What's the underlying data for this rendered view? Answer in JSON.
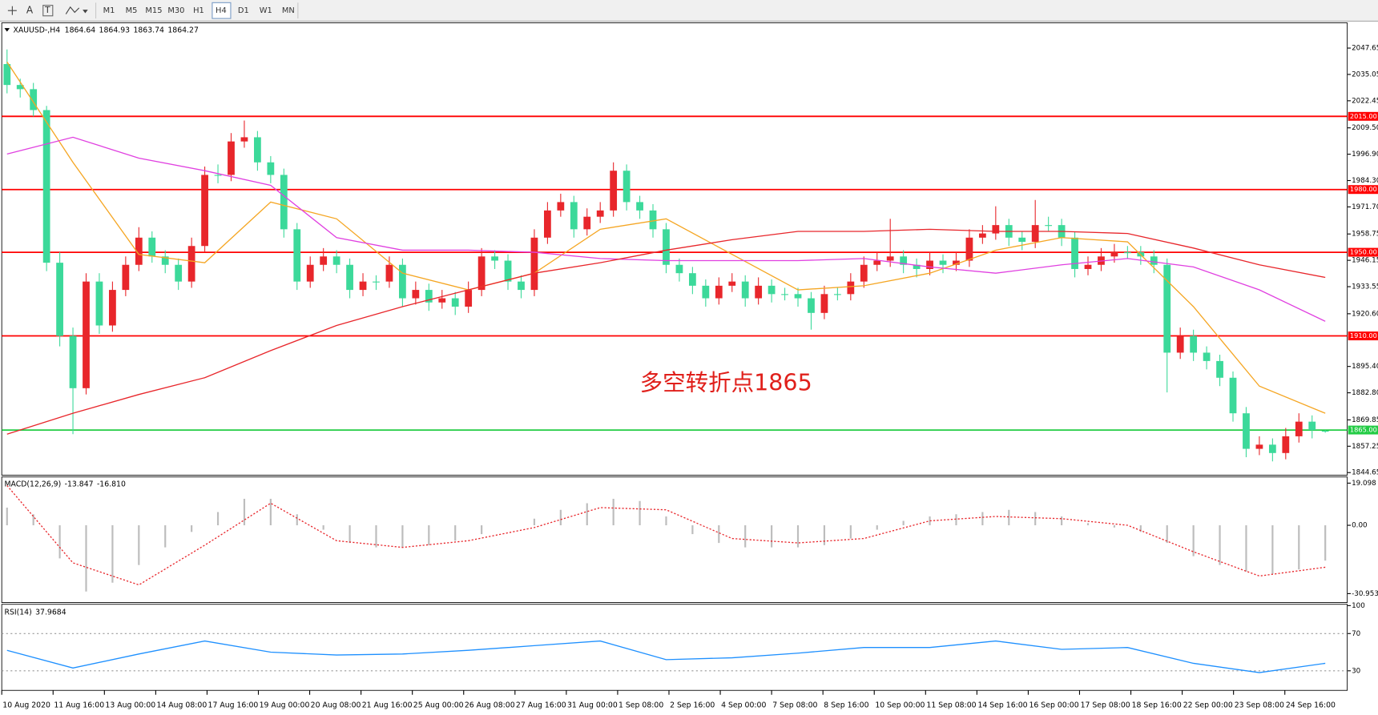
{
  "toolbar": {
    "tools": [
      "A",
      "T"
    ],
    "timeframes": [
      "M1",
      "M5",
      "M15",
      "M30",
      "H1",
      "H4",
      "D1",
      "W1",
      "MN"
    ],
    "active": "H4"
  },
  "chart_data": {
    "type": "candlestick",
    "symbol": "XAUUSD-,H4",
    "annotation": "多空转折点1865",
    "up_color": "#e8262b",
    "down_color": "#3cd99a",
    "ylim": [
      1843.4,
      2059.7
    ],
    "yticks": [
      2047.65,
      2035.05,
      2022.45,
      {
        "value": 2009.5,
        "label": "2009.50"
      },
      {
        "value": 1996.9,
        "label": "1996.90"
      },
      {
        "value": 1984.3,
        "label": "1984.30"
      },
      {
        "value": 1971.7,
        "label": "1971.70"
      },
      1958.75,
      1946.15,
      1933.55,
      {
        "value": 1920.6,
        "label": "1920.60"
      },
      {
        "value": 1895.4,
        "label": "1895.40"
      },
      {
        "value": 1882.8,
        "label": "1882.80"
      },
      1869.85,
      1857.25,
      1844.65
    ],
    "levels": [
      {
        "value": 2015,
        "label": "2015.00",
        "color": "#ff0000"
      },
      {
        "value": 1980,
        "label": "1980.00",
        "color": "#ff0000"
      },
      {
        "value": 1950,
        "label": "1950.00",
        "color": "#ff0000"
      },
      {
        "value": 1910,
        "label": "1910.00",
        "color": "#ff0000"
      },
      {
        "value": 1865,
        "label": "1865.00",
        "color": "#22cc44"
      }
    ],
    "xtick_labels": [
      "10 Aug 2020",
      "11 Aug 16:00",
      "13 Aug 00:00",
      "14 Aug 08:00",
      "17 Aug 16:00",
      "19 Aug 00:00",
      "20 Aug 08:00",
      "21 Aug 16:00",
      "25 Aug 00:00",
      "26 Aug 08:00",
      "27 Aug 16:00",
      "31 Aug 00:00",
      "1 Sep 08:00",
      "2 Sep 16:00",
      "4 Sep 00:00",
      "7 Sep 08:00",
      "8 Sep 16:00",
      "10 Sep 00:00",
      "11 Sep 08:00",
      "14 Sep 16:00",
      "16 Sep 00:00",
      "17 Sep 08:00",
      "18 Sep 16:00",
      "22 Sep 00:00",
      "23 Sep 08:00",
      "24 Sep 16:00"
    ],
    "candles": [
      [
        2040,
        2047,
        2026,
        2030
      ],
      [
        2030,
        2033,
        2024,
        2028
      ],
      [
        2028,
        2031,
        2015,
        2018
      ],
      [
        2018,
        2020,
        1941,
        1945
      ],
      [
        1945,
        1950,
        1905,
        1910
      ],
      [
        1910,
        1914,
        1863,
        1885
      ],
      [
        1885,
        1940,
        1882,
        1936
      ],
      [
        1936,
        1940,
        1911,
        1915
      ],
      [
        1915,
        1936,
        1912,
        1932
      ],
      [
        1932,
        1948,
        1929,
        1944
      ],
      [
        1944,
        1962,
        1941,
        1957
      ],
      [
        1957,
        1960,
        1945,
        1948
      ],
      [
        1948,
        1951,
        1940,
        1944
      ],
      [
        1944,
        1947,
        1932,
        1936
      ],
      [
        1936,
        1957,
        1933,
        1953
      ],
      [
        1953,
        1991,
        1950,
        1987
      ],
      [
        1987,
        1992,
        1983,
        1987
      ],
      [
        1987,
        2007,
        1984,
        2003
      ],
      [
        2003,
        2013,
        2000,
        2005
      ],
      [
        2005,
        2008,
        1989,
        1993
      ],
      [
        1993,
        1996,
        1983,
        1987
      ],
      [
        1987,
        1990,
        1957,
        1961
      ],
      [
        1961,
        1964,
        1932,
        1936
      ],
      [
        1936,
        1948,
        1933,
        1944
      ],
      [
        1944,
        1952,
        1941,
        1948
      ],
      [
        1948,
        1951,
        1940,
        1944
      ],
      [
        1944,
        1947,
        1928,
        1932
      ],
      [
        1932,
        1940,
        1929,
        1936
      ],
      [
        1936,
        1939,
        1932,
        1936
      ],
      [
        1936,
        1948,
        1933,
        1944
      ],
      [
        1944,
        1947,
        1924,
        1928
      ],
      [
        1928,
        1936,
        1925,
        1932
      ],
      [
        1932,
        1935,
        1922,
        1926
      ],
      [
        1926,
        1932,
        1923,
        1928
      ],
      [
        1928,
        1931,
        1920,
        1924
      ],
      [
        1924,
        1936,
        1921,
        1932
      ],
      [
        1932,
        1952,
        1929,
        1948
      ],
      [
        1948,
        1951,
        1942,
        1946
      ],
      [
        1946,
        1949,
        1932,
        1936
      ],
      [
        1936,
        1939,
        1928,
        1932
      ],
      [
        1932,
        1961,
        1929,
        1957
      ],
      [
        1957,
        1974,
        1954,
        1970
      ],
      [
        1970,
        1978,
        1967,
        1974
      ],
      [
        1974,
        1977,
        1957,
        1961
      ],
      [
        1961,
        1971,
        1958,
        1967
      ],
      [
        1967,
        1974,
        1964,
        1970
      ],
      [
        1970,
        1993,
        1967,
        1989
      ],
      [
        1989,
        1992,
        1970,
        1974
      ],
      [
        1974,
        1977,
        1966,
        1970
      ],
      [
        1970,
        1973,
        1957,
        1961
      ],
      [
        1961,
        1964,
        1940,
        1944
      ],
      [
        1944,
        1947,
        1936,
        1940
      ],
      [
        1940,
        1943,
        1930,
        1934
      ],
      [
        1934,
        1937,
        1924,
        1928
      ],
      [
        1928,
        1938,
        1925,
        1934
      ],
      [
        1934,
        1940,
        1931,
        1936
      ],
      [
        1936,
        1939,
        1924,
        1928
      ],
      [
        1928,
        1938,
        1925,
        1934
      ],
      [
        1934,
        1937,
        1926,
        1930
      ],
      [
        1930,
        1933,
        1927,
        1930
      ],
      [
        1930,
        1933,
        1924,
        1928
      ],
      [
        1928,
        1931,
        1913,
        1921
      ],
      [
        1921,
        1934,
        1918,
        1930
      ],
      [
        1930,
        1933,
        1927,
        1930
      ],
      [
        1930,
        1940,
        1927,
        1936
      ],
      [
        1936,
        1948,
        1933,
        1944
      ],
      [
        1944,
        1950,
        1941,
        1946
      ],
      [
        1946,
        1966,
        1943,
        1948
      ],
      [
        1948,
        1951,
        1940,
        1944
      ],
      [
        1944,
        1947,
        1938,
        1942
      ],
      [
        1942,
        1950,
        1939,
        1946
      ],
      [
        1946,
        1949,
        1940,
        1944
      ],
      [
        1944,
        1950,
        1941,
        1946
      ],
      [
        1946,
        1961,
        1943,
        1957
      ],
      [
        1957,
        1963,
        1954,
        1959
      ],
      [
        1959,
        1972,
        1956,
        1963
      ],
      [
        1963,
        1966,
        1953,
        1957
      ],
      [
        1957,
        1960,
        1951,
        1955
      ],
      [
        1955,
        1975,
        1952,
        1963
      ],
      [
        1963,
        1967,
        1960,
        1963
      ],
      [
        1963,
        1966,
        1953,
        1957
      ],
      [
        1957,
        1960,
        1938,
        1942
      ],
      [
        1942,
        1948,
        1939,
        1944
      ],
      [
        1944,
        1952,
        1941,
        1948
      ],
      [
        1948,
        1954,
        1945,
        1950
      ],
      [
        1950,
        1953,
        1947,
        1950
      ],
      [
        1950,
        1953,
        1944,
        1948
      ],
      [
        1948,
        1951,
        1940,
        1944
      ],
      [
        1944,
        1947,
        1883,
        1902
      ],
      [
        1902,
        1914,
        1899,
        1910
      ],
      [
        1910,
        1913,
        1898,
        1902
      ],
      [
        1902,
        1905,
        1894,
        1898
      ],
      [
        1898,
        1901,
        1886,
        1890
      ],
      [
        1890,
        1893,
        1869,
        1873
      ],
      [
        1873,
        1876,
        1852,
        1856
      ],
      [
        1856,
        1862,
        1853,
        1858
      ],
      [
        1858,
        1861,
        1850,
        1854
      ],
      [
        1854,
        1866,
        1851,
        1862
      ],
      [
        1862,
        1873,
        1859,
        1869
      ],
      [
        1869,
        1872,
        1861,
        1865
      ],
      [
        1864.64,
        1864.93,
        1863.74,
        1864.27
      ]
    ],
    "moving_averages": [
      {
        "color": "#f5a623",
        "values": [
          2041,
          1993,
          1949,
          1945,
          1974,
          1966,
          1940,
          1932,
          1940,
          1961,
          1966,
          1949,
          1932,
          1934,
          1940,
          1951,
          1957,
          1955,
          1924,
          1886,
          1873
        ]
      },
      {
        "color": "#e040e0",
        "values": [
          1997,
          2005,
          1995,
          1989,
          1982,
          1957,
          1951,
          1951,
          1950,
          1947,
          1946,
          1946,
          1946,
          1947,
          1943,
          1940,
          1944,
          1947,
          1943,
          1932,
          1917
        ]
      },
      {
        "color": "#e8262b",
        "values": [
          1863,
          1873,
          1882,
          1890,
          1903,
          1915,
          1924,
          1932,
          1940,
          1945,
          1951,
          1956,
          1960,
          1960,
          1961,
          1960,
          1960,
          1959,
          1952,
          1944,
          1938
        ]
      }
    ],
    "macd": {
      "name": "MACD(12,26,9)",
      "readout": [
        -13.847,
        {
          "value": -16.81,
          "label": "-16.810"
        }
      ],
      "ylim": [
        -35,
        21.9
      ],
      "yticks": [
        19.098,
        {
          "value": 0,
          "label": "0.00"
        },
        -30.953
      ],
      "histogram": {
        "color": "#bdbdbd",
        "values": [
          8,
          5,
          -15,
          -30,
          -26,
          -18,
          -10,
          -3,
          6,
          12,
          12,
          5,
          -2,
          -8,
          -10,
          -10,
          -9,
          -7,
          -4,
          0,
          3,
          7,
          10,
          12,
          11,
          4,
          -4,
          -8,
          -10,
          -10,
          -10,
          -9,
          -6,
          -2,
          2,
          4,
          5,
          6,
          7,
          6,
          4,
          1,
          -1,
          -3,
          -8,
          -14,
          -18,
          -21,
          -22,
          -20,
          -16
        ]
      },
      "signal": {
        "color": "#e8262b",
        "values": [
          18,
          -17,
          -27,
          -9,
          10,
          -7,
          -10,
          -7,
          -1,
          8,
          7,
          -6,
          -8,
          -6,
          2,
          4,
          3,
          0,
          -12,
          -23,
          -19
        ]
      }
    },
    "rsi": {
      "name": "RSI(14)",
      "readout": 37.9684,
      "ylim": [
        9,
        101.4
      ],
      "yticks": [
        100,
        70,
        30
      ],
      "levels": [
        70,
        30
      ],
      "color": "#1e90ff",
      "values": [
        52,
        33,
        48,
        62,
        50,
        47,
        48,
        52,
        57,
        62,
        42,
        44,
        49,
        55,
        55,
        62,
        53,
        55,
        38,
        28,
        38
      ]
    }
  }
}
